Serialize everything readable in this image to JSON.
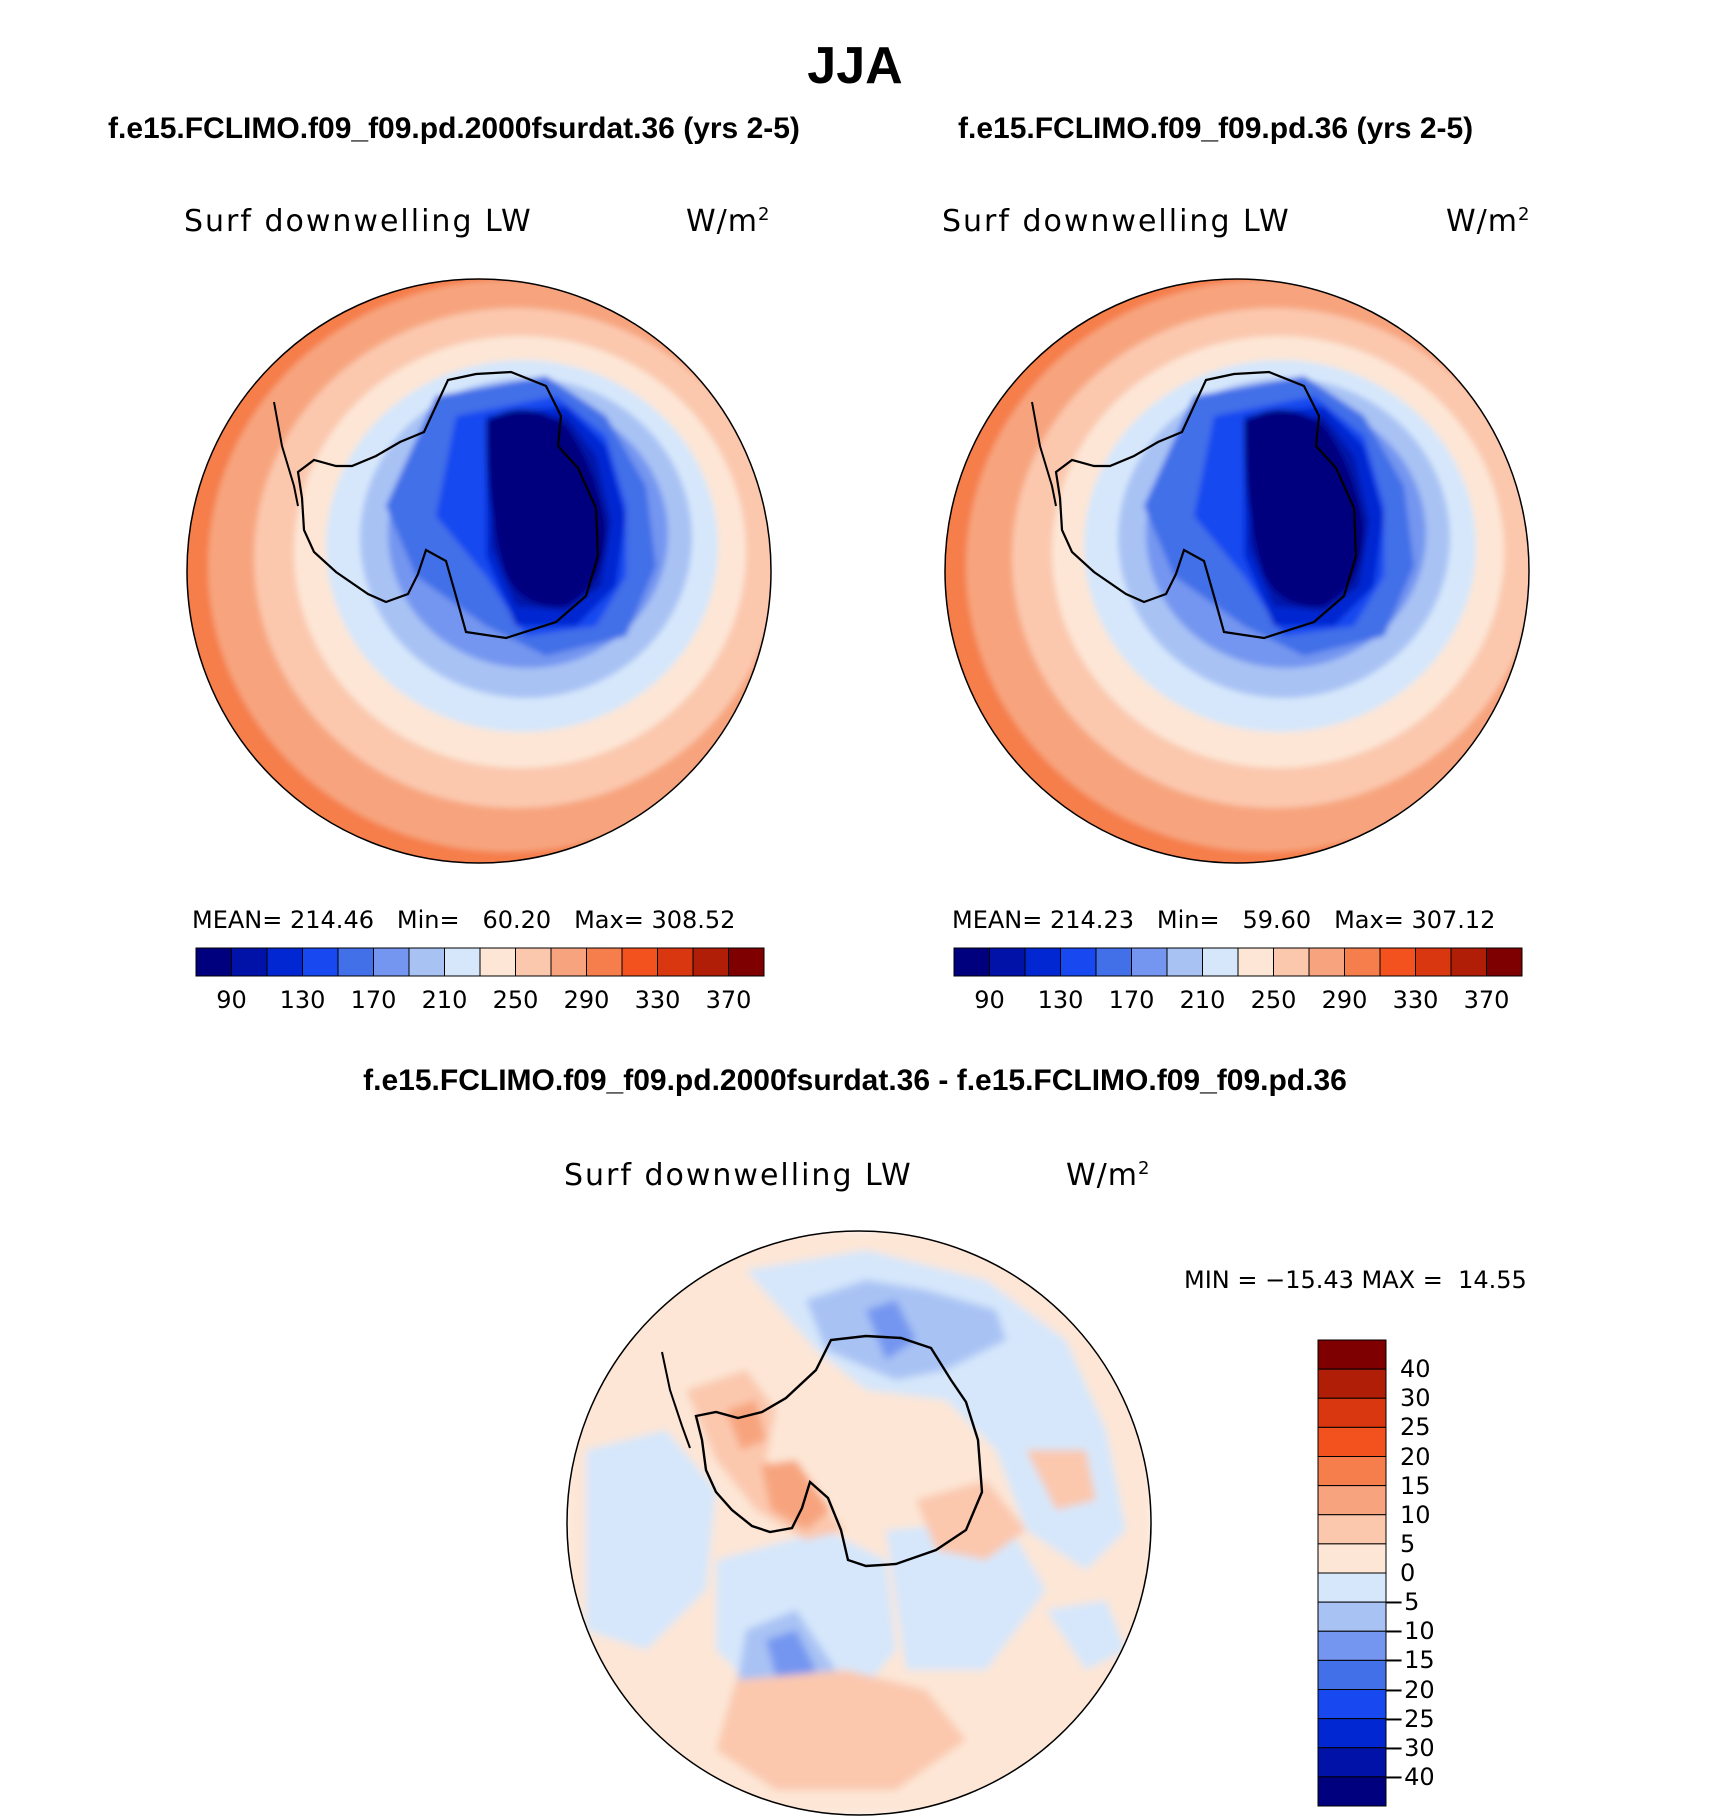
{
  "title": "JJA",
  "panels": [
    {
      "case_title": "f.e15.FCLIMO.f09_f09.pd.2000fsurdat.36 (yrs 2-5)",
      "variable": "Surf downwelling LW",
      "units": "W/m",
      "units_sup": "2",
      "stats": {
        "mean_label": "MEAN=",
        "mean": "214.46",
        "min_label": "Min=",
        "min": "60.20",
        "max_label": "Max=",
        "max": "308.52"
      }
    },
    {
      "case_title": "f.e15.FCLIMO.f09_f09.pd.36 (yrs 2-5)",
      "variable": "Surf downwelling LW",
      "units": "W/m",
      "units_sup": "2",
      "stats": {
        "mean_label": "MEAN=",
        "mean": "214.23",
        "min_label": "Min=",
        "min": "59.60",
        "max_label": "Max=",
        "max": "307.12"
      }
    }
  ],
  "diff_panel": {
    "case_title": "f.e15.FCLIMO.f09_f09.pd.2000fsurdat.36 - f.e15.FCLIMO.f09_f09.pd.36",
    "variable": "Surf downwelling LW",
    "units": "W/m",
    "units_sup": "2",
    "minmax": "MIN = −15.43 MAX =  14.55"
  },
  "abs_colorbar": {
    "colors": [
      "#00007f",
      "#0012a8",
      "#0027d1",
      "#1748f0",
      "#4270e8",
      "#7596f0",
      "#a8c2f4",
      "#d6e7fb",
      "#fde6d6",
      "#fbc8ae",
      "#f7a47e",
      "#f57e4c",
      "#f3521f",
      "#d9370f",
      "#b01e08",
      "#7f0000"
    ],
    "tick_labels": [
      "90",
      "130",
      "170",
      "210",
      "250",
      "290",
      "330",
      "370"
    ]
  },
  "diff_colorbar": {
    "colors": [
      "#7f0000",
      "#b01e08",
      "#d9370f",
      "#f3521f",
      "#f57e4c",
      "#f7a47e",
      "#fbc8ae",
      "#fde6d6",
      "#d6e7fb",
      "#a8c2f4",
      "#7596f0",
      "#4270e8",
      "#1748f0",
      "#0027d1",
      "#0012a8",
      "#00007f"
    ],
    "tick_labels": [
      "40",
      "30",
      "25",
      "20",
      "15",
      "10",
      "5",
      "0",
      "−5",
      "−10",
      "−15",
      "−20",
      "−25",
      "−30",
      "−40"
    ]
  }
}
